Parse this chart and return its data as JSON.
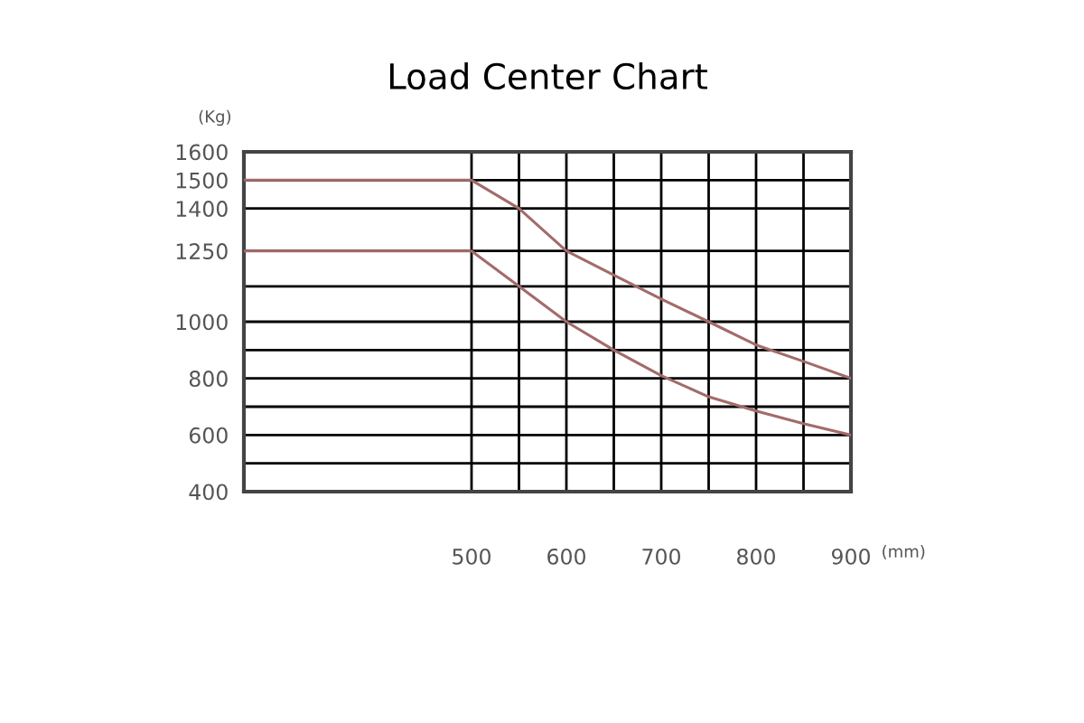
{
  "chart_data": {
    "type": "line",
    "title": "Load Center Chart",
    "xlabel": "(mm)",
    "ylabel": "(Kg)",
    "series": [
      {
        "color": "#a36b6b",
        "x": [
          260,
          500,
          550,
          600,
          650,
          700,
          750,
          800,
          850,
          900
        ],
        "values": [
          1500,
          1500,
          1400,
          1250,
          1165,
          1080,
          1000,
          918,
          860,
          800
        ]
      },
      {
        "color": "#a36b6b",
        "x": [
          260,
          500,
          550,
          600,
          650,
          700,
          750,
          800,
          850,
          900
        ],
        "values": [
          1250,
          1250,
          1125,
          1000,
          900,
          810,
          735,
          685,
          640,
          600
        ]
      }
    ],
    "xlim": [
      260,
      900
    ],
    "ylim": [
      400,
      1600
    ],
    "xticks": [
      500,
      {
        "value": 550,
        "label": null
      },
      600,
      {
        "value": 650,
        "label": null
      },
      700,
      {
        "value": 750,
        "label": null
      },
      800,
      {
        "value": 850,
        "label": null
      },
      900
    ],
    "yticks": [
      400,
      {
        "value": 500,
        "label": null
      },
      600,
      {
        "value": 700,
        "label": null
      },
      800,
      {
        "value": 900,
        "label": null
      },
      1000,
      {
        "value": 1125,
        "label": null
      },
      1250,
      1400,
      1500,
      1600
    ],
    "grid": true,
    "legend": false,
    "marker": "none",
    "line_style": "solid"
  }
}
